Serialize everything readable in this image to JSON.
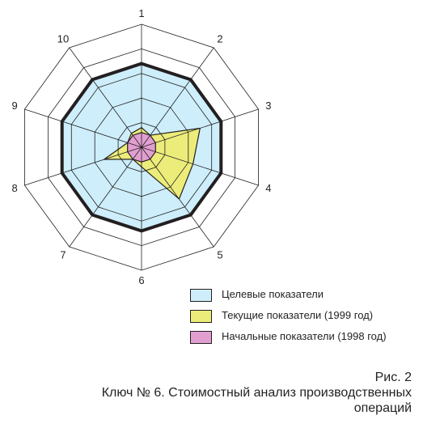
{
  "chart_data": {
    "type": "radar",
    "axes": [
      "1",
      "2",
      "3",
      "4",
      "5",
      "6",
      "7",
      "8",
      "9",
      "10"
    ],
    "rmax": 5,
    "rings": [
      1,
      2,
      3,
      4,
      5
    ],
    "series": [
      {
        "name": "Целевые показатели",
        "values": [
          3.4,
          3.4,
          3.4,
          3.4,
          3.4,
          3.4,
          3.4,
          3.4,
          3.4,
          3.4
        ],
        "fill": "#cdeefa",
        "stroke": "#231f20",
        "stroke_role": "bold"
      },
      {
        "name": "Текущие показатели (1999 год)",
        "values": [
          0.8,
          0.6,
          2.5,
          2.2,
          2.6,
          0.8,
          0.6,
          1.6,
          0.6,
          0.7
        ],
        "fill": "#ecec7a",
        "stroke": "#231f20",
        "stroke_role": "thin"
      },
      {
        "name": "Начальные показатели (1998 год)",
        "values": [
          0.6,
          0.6,
          0.6,
          0.6,
          0.6,
          0.6,
          0.6,
          0.6,
          0.6,
          0.6
        ],
        "fill": "#e19fd1",
        "stroke": "#231f20",
        "stroke_role": "thin"
      }
    ],
    "grid": true,
    "legend_position": "bottom-right"
  },
  "caption": {
    "figure": "Рис. 2",
    "line1": "Ключ № 6. Стоимостный анализ производственных",
    "line2": "операций"
  }
}
